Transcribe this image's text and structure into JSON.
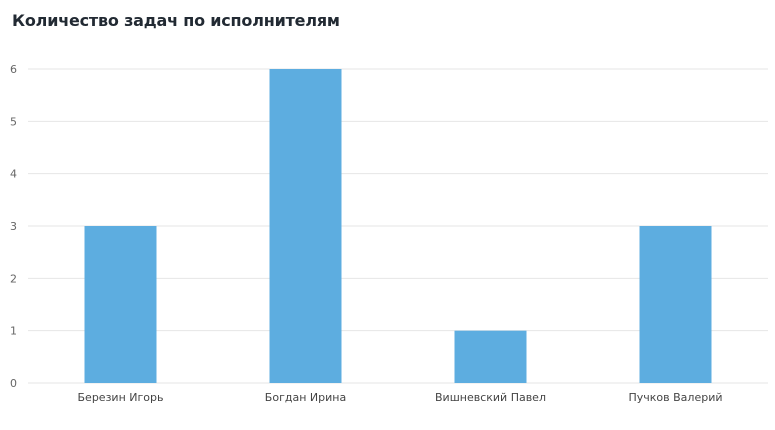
{
  "chart_data": {
    "type": "bar",
    "title": "Количество задач по исполнителям",
    "xlabel": "",
    "ylabel": "",
    "categories": [
      "Березин Игорь",
      "Богдан Ирина",
      "Вишневский Павел",
      "Пучков Валерий"
    ],
    "values": [
      3,
      6,
      1,
      3
    ],
    "ylim": [
      0,
      6
    ],
    "yticks": [
      "0",
      "1",
      "2",
      "3",
      "4",
      "5",
      "6"
    ],
    "grid": true,
    "legend": "none",
    "bar_color": "#5dade0",
    "grid_color": "#e6e6e6"
  }
}
